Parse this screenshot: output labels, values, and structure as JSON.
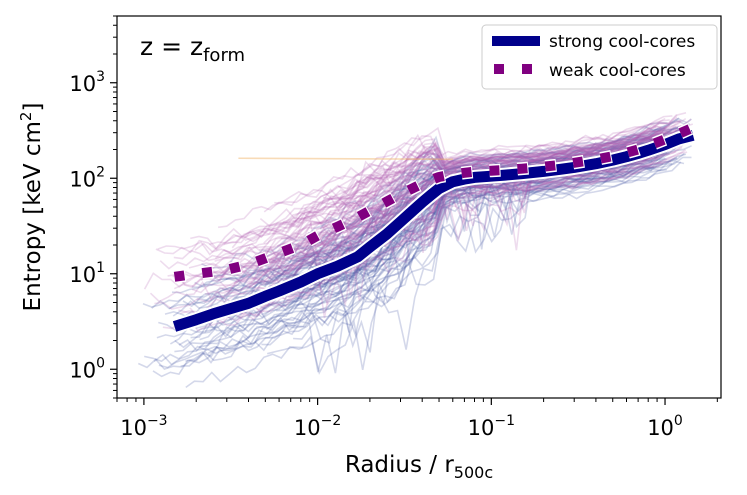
{
  "chart_data": {
    "type": "line",
    "title": "",
    "annotation": {
      "main": "z = z",
      "subscript": "form"
    },
    "xlabel": {
      "main": "Radius / r",
      "subscript": "500c"
    },
    "ylabel": {
      "main": "Entropy [keV cm",
      "superscript": "2",
      "tail": "]"
    },
    "xscale": "log",
    "yscale": "log",
    "xlim": [
      0.0007,
      2.1
    ],
    "ylim": [
      0.5,
      5000
    ],
    "x_ticks": [
      {
        "base": "10",
        "exp": "−3",
        "value": 0.001
      },
      {
        "base": "10",
        "exp": "−2",
        "value": 0.01
      },
      {
        "base": "10",
        "exp": "−1",
        "value": 0.1
      },
      {
        "base": "10",
        "exp": "0",
        "value": 1
      }
    ],
    "y_ticks": [
      {
        "base": "10",
        "exp": "0",
        "value": 1
      },
      {
        "base": "10",
        "exp": "1",
        "value": 10
      },
      {
        "base": "10",
        "exp": "2",
        "value": 100
      },
      {
        "base": "10",
        "exp": "3",
        "value": 1000
      }
    ],
    "legend_position": "top-right",
    "colors": {
      "strong": "#00008b",
      "weak": "#800080",
      "strong_thin": "#3a4fa0",
      "weak_thin": "#b060b0"
    },
    "series": [
      {
        "name": "strong cool-cores",
        "style": "solid-thick",
        "color": "#00008b",
        "x": [
          0.0015,
          0.002,
          0.0025,
          0.003,
          0.004,
          0.005,
          0.006,
          0.008,
          0.01,
          0.013,
          0.017,
          0.02,
          0.025,
          0.03,
          0.035,
          0.04,
          0.045,
          0.05,
          0.06,
          0.07,
          0.08,
          0.1,
          0.12,
          0.15,
          0.2,
          0.25,
          0.3,
          0.4,
          0.5,
          0.6,
          0.7,
          0.8,
          1.0,
          1.2,
          1.45
        ],
        "y": [
          2.8,
          3.3,
          3.8,
          4.2,
          4.9,
          5.8,
          6.6,
          8.2,
          10,
          12,
          15,
          19,
          26,
          35,
          45,
          56,
          67,
          78,
          92,
          98,
          102,
          105,
          108,
          112,
          118,
          124,
          130,
          142,
          155,
          168,
          182,
          196,
          225,
          258,
          282
        ]
      },
      {
        "name": "weak cool-cores",
        "style": "dotted",
        "color": "#800080",
        "x": [
          0.0015,
          0.002,
          0.0025,
          0.003,
          0.004,
          0.005,
          0.006,
          0.008,
          0.01,
          0.013,
          0.017,
          0.02,
          0.025,
          0.03,
          0.035,
          0.04,
          0.045,
          0.05,
          0.06,
          0.07,
          0.08,
          0.1,
          0.12,
          0.15,
          0.2,
          0.25,
          0.3,
          0.4,
          0.5,
          0.6,
          0.7,
          0.8,
          1.0,
          1.2,
          1.4
        ],
        "y": [
          9.3,
          10,
          10.5,
          11,
          12.5,
          14.5,
          16.5,
          20,
          25,
          31,
          39,
          46,
          57,
          68,
          78,
          88,
          96,
          103,
          110,
          114,
          117,
          120,
          122,
          126,
          132,
          138,
          145,
          157,
          170,
          185,
          200,
          218,
          255,
          292,
          330
        ]
      }
    ]
  }
}
